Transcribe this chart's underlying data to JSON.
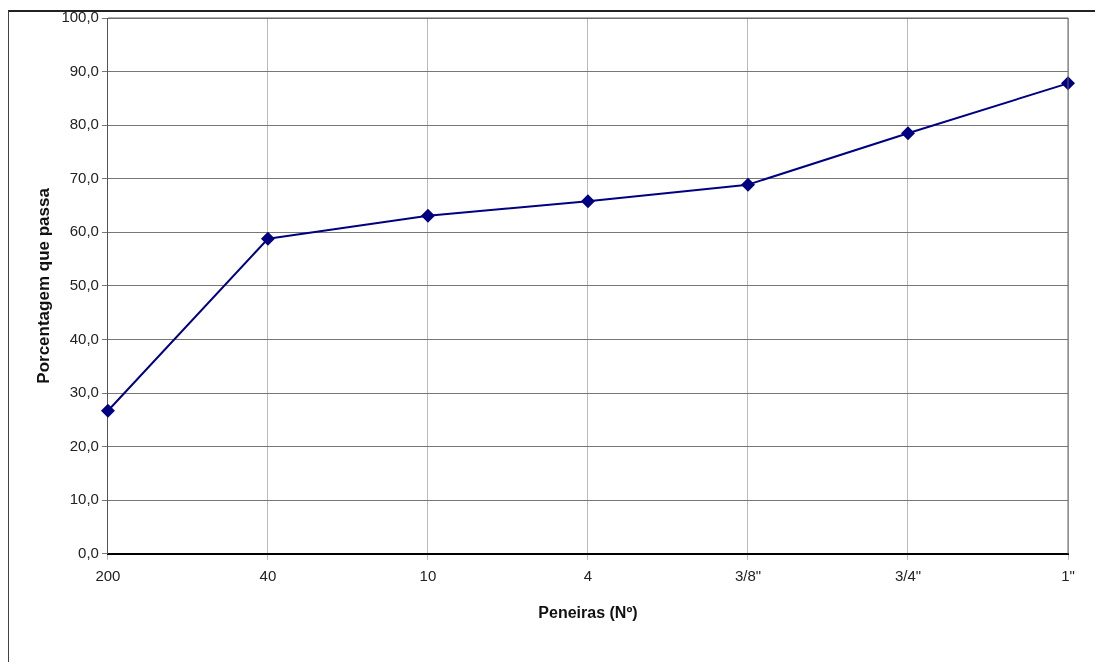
{
  "chart_data": {
    "type": "line",
    "xlabel": "Peneiras (Nº)",
    "ylabel": "Porcentagem que passa",
    "categories": [
      "200",
      "40",
      "10",
      "4",
      "3/8\"",
      "3/4\"",
      "1\""
    ],
    "series": [
      {
        "color": "#000080",
        "values": [
          26.7,
          58.8,
          63.1,
          65.8,
          68.9,
          78.5,
          87.8
        ]
      }
    ],
    "ylim": [
      0,
      100
    ],
    "yticks": [
      {
        "value": 0,
        "label": "0,0"
      },
      {
        "value": 10,
        "label": "10,0"
      },
      {
        "value": 20,
        "label": "20,0"
      },
      {
        "value": 30,
        "label": "30,0"
      },
      {
        "value": 40,
        "label": "40,0"
      },
      {
        "value": 50,
        "label": "50,0"
      },
      {
        "value": 60,
        "label": "60,0"
      },
      {
        "value": 70,
        "label": "70,0"
      },
      {
        "value": 80,
        "label": "80,0"
      },
      {
        "value": 90,
        "label": "90,0"
      },
      {
        "value": 100,
        "label": "100,0"
      }
    ],
    "grid": true,
    "legend": false,
    "marker": "diamond",
    "line_style": "solid"
  }
}
